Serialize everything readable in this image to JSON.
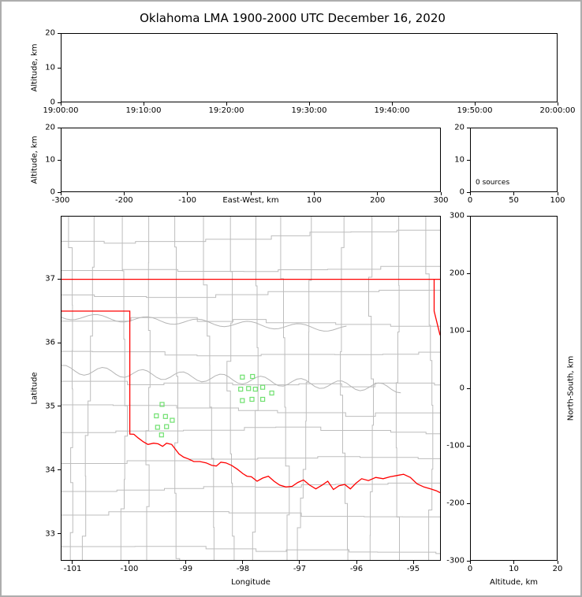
{
  "title": "Oklahoma LMA 1900-2000 UTC December 16, 2020",
  "colors": {
    "frame": "#adadad",
    "axis": "#000000",
    "county_line": "#bdbdbd",
    "river_line": "#b5b5b5",
    "state_border": "#ff0000",
    "station_marker": "#6fe06f",
    "background": "#ffffff"
  },
  "chart_data": [
    {
      "id": "time_height",
      "type": "scatter",
      "ylabel": "Altitude, km",
      "xticks": [
        "19:00:00",
        "19:10:00",
        "19:20:00",
        "19:30:00",
        "19:40:00",
        "19:50:00",
        "20:00:00"
      ],
      "yticks": [
        0,
        10,
        20
      ],
      "ylim": [
        0,
        20
      ],
      "points": []
    },
    {
      "id": "ew_height",
      "type": "scatter",
      "xlabel": "East-West, km",
      "ylabel": "Altitude, km",
      "xlim": [
        -300,
        300
      ],
      "xticks": [
        -300,
        -200,
        -100,
        0,
        100,
        200,
        300
      ],
      "xticklabels": [
        "-300",
        "-200",
        "-100",
        "",
        "100",
        "200",
        "300"
      ],
      "yticks": [
        0,
        10,
        20
      ],
      "ylim": [
        0,
        20
      ],
      "points": []
    },
    {
      "id": "alt_hist",
      "type": "scatter",
      "annotation": "0 sources",
      "xlim": [
        0,
        100
      ],
      "xticks": [
        0,
        50,
        100
      ],
      "yticks": [
        0,
        10,
        20
      ],
      "ylim": [
        0,
        20
      ],
      "points": []
    },
    {
      "id": "plan_view",
      "type": "scatter",
      "xlabel": "Longitude",
      "ylabel": "Latitude",
      "xlim": [
        -101.2083,
        -94.5139
      ],
      "ylim": [
        32.5802,
        37.9877
      ],
      "xticks": [
        -101,
        -100,
        -99,
        -98,
        -97,
        -96,
        -95
      ],
      "yticks": [
        33,
        34,
        35,
        36,
        37
      ],
      "stations": [
        [
          -98.01,
          35.46
        ],
        [
          -97.83,
          35.47
        ],
        [
          -98.04,
          35.27
        ],
        [
          -97.9,
          35.28
        ],
        [
          -97.78,
          35.27
        ],
        [
          -97.65,
          35.3
        ],
        [
          -98.01,
          35.09
        ],
        [
          -97.84,
          35.11
        ],
        [
          -97.65,
          35.11
        ],
        [
          -97.49,
          35.21
        ],
        [
          -99.43,
          35.03
        ],
        [
          -99.53,
          34.85
        ],
        [
          -99.37,
          34.84
        ],
        [
          -99.51,
          34.67
        ],
        [
          -99.35,
          34.68
        ],
        [
          -99.25,
          34.78
        ],
        [
          -99.44,
          34.55
        ]
      ],
      "state_borders": [
        {
          "name": "kansas-oklahoma-border",
          "points": [
            [
              -101.2083,
              37.0
            ],
            [
              -94.5139,
              37.0
            ]
          ]
        },
        {
          "name": "missouri-arkansas-border",
          "points": [
            [
              -94.618,
              37.0
            ],
            [
              -94.618,
              36.5
            ],
            [
              -94.5139,
              36.12
            ]
          ]
        },
        {
          "name": "texas-oklahoma-border",
          "points": [
            [
              -101.2083,
              36.5
            ],
            [
              -100.0,
              36.5
            ],
            [
              -100.0,
              34.563
            ],
            [
              -99.93,
              34.56
            ],
            [
              -99.85,
              34.5
            ],
            [
              -99.76,
              34.44
            ],
            [
              -99.68,
              34.4
            ],
            [
              -99.58,
              34.42
            ],
            [
              -99.5,
              34.41
            ],
            [
              -99.42,
              34.37
            ],
            [
              -99.35,
              34.42
            ],
            [
              -99.26,
              34.4
            ],
            [
              -99.2,
              34.33
            ],
            [
              -99.13,
              34.25
            ],
            [
              -99.05,
              34.2
            ],
            [
              -98.96,
              34.17
            ],
            [
              -98.87,
              34.13
            ],
            [
              -98.76,
              34.13
            ],
            [
              -98.65,
              34.11
            ],
            [
              -98.55,
              34.07
            ],
            [
              -98.47,
              34.06
            ],
            [
              -98.39,
              34.12
            ],
            [
              -98.3,
              34.11
            ],
            [
              -98.2,
              34.07
            ],
            [
              -98.1,
              34.01
            ],
            [
              -98.0,
              33.94
            ],
            [
              -97.93,
              33.9
            ],
            [
              -97.85,
              33.89
            ],
            [
              -97.75,
              33.82
            ],
            [
              -97.65,
              33.87
            ],
            [
              -97.55,
              33.9
            ],
            [
              -97.45,
              33.82
            ],
            [
              -97.35,
              33.76
            ],
            [
              -97.24,
              33.73
            ],
            [
              -97.13,
              33.74
            ],
            [
              -97.03,
              33.8
            ],
            [
              -96.93,
              33.84
            ],
            [
              -96.82,
              33.76
            ],
            [
              -96.71,
              33.7
            ],
            [
              -96.6,
              33.76
            ],
            [
              -96.5,
              33.82
            ],
            [
              -96.4,
              33.69
            ],
            [
              -96.3,
              33.75
            ],
            [
              -96.2,
              33.77
            ],
            [
              -96.1,
              33.7
            ],
            [
              -96.0,
              33.79
            ],
            [
              -95.9,
              33.86
            ],
            [
              -95.78,
              33.83
            ],
            [
              -95.65,
              33.88
            ],
            [
              -95.52,
              33.86
            ],
            [
              -95.4,
              33.89
            ],
            [
              -95.28,
              33.91
            ],
            [
              -95.16,
              33.93
            ],
            [
              -95.04,
              33.88
            ],
            [
              -94.92,
              33.78
            ],
            [
              -94.8,
              33.73
            ],
            [
              -94.68,
              33.7
            ],
            [
              -94.58,
              33.67
            ],
            [
              -94.5139,
              33.64
            ]
          ]
        }
      ]
    },
    {
      "id": "ns_height",
      "type": "scatter",
      "xlabel": "Altitude, km",
      "ylabel_right": "North-South, km",
      "xlim": [
        0,
        20
      ],
      "xticks": [
        0,
        10,
        20
      ],
      "ylim": [
        -300,
        300
      ],
      "yticks": [
        -300,
        -200,
        -100,
        0,
        100,
        200,
        300
      ],
      "points": []
    }
  ]
}
